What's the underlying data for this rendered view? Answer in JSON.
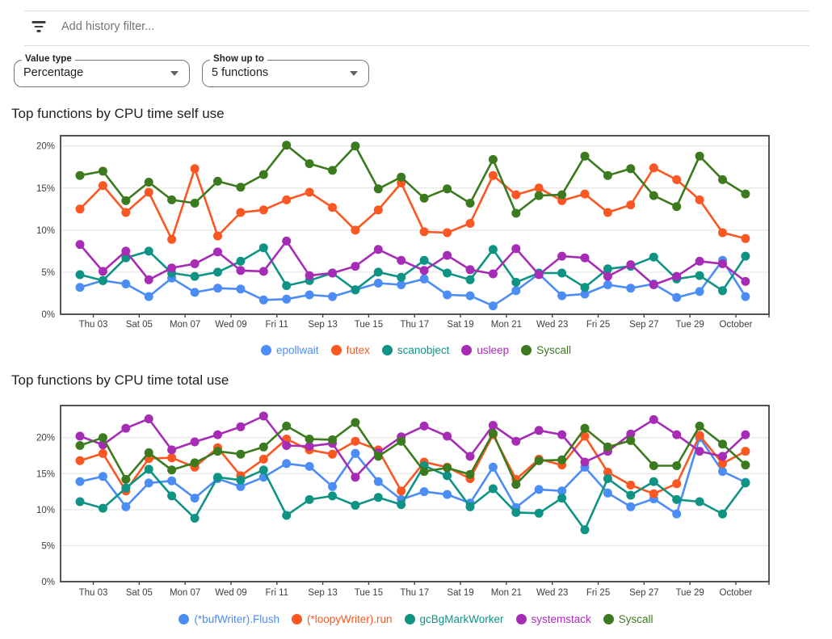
{
  "filter_bar": {
    "placeholder": "Add history filter...",
    "icon": "filter-list-icon"
  },
  "controls": {
    "value_type": {
      "label": "Value type",
      "value": "Percentage"
    },
    "show_up_to": {
      "label": "Show up to",
      "value": "5 functions"
    }
  },
  "axis": {
    "x_tick_labels": [
      "Thu 03",
      "Sat 05",
      "Mon 07",
      "Wed 09",
      "Fri 11",
      "Sep 13",
      "Tue 15",
      "Thu 17",
      "Sat 19",
      "Mon 21",
      "Wed 23",
      "Fri 25",
      "Sep 27",
      "Tue 29",
      "October"
    ],
    "y_tick_labels": [
      "0%",
      "5%",
      "10%",
      "15%",
      "20%"
    ]
  },
  "colors": {
    "blue": "#4C8DF5",
    "orange": "#FB5722",
    "teal": "#0E9384",
    "purple": "#A62CB5",
    "green": "#3B7A1E",
    "axis_text": "#3c4043",
    "gridline": "#e6e6e6",
    "plot_border": "#424242"
  },
  "chart_data": [
    {
      "type": "line",
      "title": "Top functions by CPU time self use",
      "x_tick_labels": [
        "Thu 03",
        "Sat 05",
        "Mon 07",
        "Wed 09",
        "Fri 11",
        "Sep 13",
        "Tue 15",
        "Thu 17",
        "Sat 19",
        "Mon 21",
        "Wed 23",
        "Fri 25",
        "Sep 27",
        "Tue 29",
        "October"
      ],
      "y_tick_labels": [
        "0%",
        "5%",
        "10%",
        "15%",
        "20%"
      ],
      "ylim": [
        0,
        21.2
      ],
      "grid": "horizontal",
      "legend_position": "bottom",
      "points_per_series": 30,
      "series": [
        {
          "name": "epollwait",
          "color": "#4C8DF5",
          "values": [
            3.2,
            4.0,
            3.6,
            2.1,
            4.3,
            2.6,
            3.1,
            3.0,
            1.7,
            1.8,
            2.3,
            2.1,
            2.9,
            3.7,
            3.5,
            4.2,
            2.3,
            2.2,
            1.0,
            2.8,
            4.8,
            2.2,
            2.4,
            3.5,
            3.1,
            3.6,
            2.0,
            2.7,
            6.4,
            2.1
          ]
        },
        {
          "name": "futex",
          "color": "#FB5722",
          "values": [
            12.5,
            15.3,
            12.1,
            14.5,
            8.9,
            17.3,
            9.3,
            12.1,
            12.4,
            13.6,
            14.5,
            12.7,
            10.0,
            12.4,
            15.6,
            9.8,
            9.7,
            10.8,
            16.5,
            14.2,
            15.0,
            13.5,
            14.3,
            12.1,
            13.0,
            17.4,
            16.0,
            13.6,
            9.7,
            9.0
          ]
        },
        {
          "name": "scanobject",
          "color": "#0E9384",
          "values": [
            4.7,
            4.0,
            6.7,
            7.5,
            4.9,
            4.5,
            5.0,
            6.3,
            7.9,
            3.4,
            4.0,
            4.9,
            2.9,
            5.0,
            4.4,
            6.4,
            4.9,
            4.1,
            7.7,
            3.8,
            4.9,
            4.9,
            3.2,
            5.4,
            5.7,
            6.8,
            4.2,
            4.6,
            2.8,
            6.9
          ]
        },
        {
          "name": "usleep",
          "color": "#A62CB5",
          "values": [
            8.3,
            5.1,
            7.5,
            4.1,
            5.5,
            6.0,
            7.4,
            5.2,
            5.1,
            8.7,
            4.6,
            4.9,
            5.7,
            7.7,
            6.4,
            5.2,
            7.0,
            5.3,
            4.8,
            7.8,
            4.7,
            6.9,
            6.7,
            4.5,
            5.9,
            3.5,
            4.5,
            6.3,
            6.0,
            3.9
          ]
        },
        {
          "name": "Syscall",
          "color": "#3B7A1E",
          "values": [
            16.5,
            17.0,
            13.5,
            15.7,
            13.6,
            13.2,
            15.8,
            15.1,
            16.6,
            20.1,
            17.9,
            17.1,
            20.0,
            14.9,
            16.3,
            13.8,
            14.9,
            13.2,
            18.4,
            12.0,
            14.1,
            14.2,
            18.8,
            16.5,
            17.3,
            14.1,
            12.8,
            18.8,
            16.0,
            14.3
          ]
        }
      ]
    },
    {
      "type": "line",
      "title": "Top functions by CPU time total use",
      "x_tick_labels": [
        "Thu 03",
        "Sat 05",
        "Mon 07",
        "Wed 09",
        "Fri 11",
        "Sep 13",
        "Tue 15",
        "Thu 17",
        "Sat 19",
        "Mon 21",
        "Wed 23",
        "Fri 25",
        "Sep 27",
        "Tue 29",
        "October"
      ],
      "y_tick_labels": [
        "0%",
        "5%",
        "10%",
        "15%",
        "20%"
      ],
      "ylim": [
        0,
        24.4
      ],
      "grid": "horizontal",
      "legend_position": "bottom",
      "points_per_series": 30,
      "series": [
        {
          "name": "(*bufWriter).Flush",
          "color": "#4C8DF5",
          "values": [
            13.9,
            14.6,
            10.4,
            13.7,
            14.0,
            11.6,
            14.3,
            13.2,
            14.5,
            16.4,
            16.0,
            13.2,
            17.8,
            13.9,
            11.4,
            12.5,
            12.1,
            10.9,
            15.9,
            10.3,
            12.8,
            12.6,
            15.9,
            12.3,
            10.4,
            11.5,
            9.4,
            20.0,
            15.3,
            13.8
          ]
        },
        {
          "name": "(*loopyWriter).run",
          "color": "#FB5722",
          "values": [
            16.8,
            17.8,
            12.6,
            17.1,
            17.2,
            15.9,
            18.6,
            14.7,
            17.0,
            19.8,
            18.3,
            17.7,
            19.5,
            18.3,
            12.6,
            16.6,
            15.9,
            14.3,
            20.4,
            14.2,
            17.0,
            16.2,
            20.2,
            15.2,
            13.4,
            12.2,
            13.6,
            20.3,
            16.4,
            18.1
          ]
        },
        {
          "name": "gcBgMarkWorker",
          "color": "#0E9384",
          "values": [
            11.1,
            10.2,
            13.0,
            15.6,
            11.9,
            8.8,
            14.5,
            14.1,
            15.5,
            9.2,
            11.4,
            11.9,
            10.6,
            11.7,
            10.7,
            16.1,
            14.7,
            10.4,
            12.9,
            9.6,
            9.5,
            11.6,
            7.2,
            14.3,
            12.0,
            13.9,
            11.4,
            11.1,
            9.4,
            13.7
          ]
        },
        {
          "name": "systemstack",
          "color": "#A62CB5",
          "values": [
            20.2,
            19.0,
            21.3,
            22.6,
            18.3,
            19.4,
            20.4,
            21.5,
            23.0,
            18.9,
            18.8,
            19.2,
            14.5,
            17.9,
            20.1,
            21.6,
            20.2,
            17.4,
            21.7,
            19.5,
            21.0,
            20.4,
            16.6,
            18.1,
            20.5,
            22.5,
            20.4,
            18.1,
            17.4,
            20.4
          ]
        },
        {
          "name": "Syscall",
          "color": "#3B7A1E",
          "values": [
            18.9,
            20.0,
            14.2,
            17.9,
            15.5,
            16.5,
            18.1,
            17.7,
            18.7,
            21.6,
            19.8,
            19.7,
            22.1,
            17.4,
            19.5,
            15.3,
            15.8,
            14.9,
            20.6,
            13.5,
            16.8,
            16.9,
            21.3,
            18.7,
            19.6,
            16.1,
            16.1,
            21.6,
            19.1,
            16.2
          ]
        }
      ]
    }
  ]
}
